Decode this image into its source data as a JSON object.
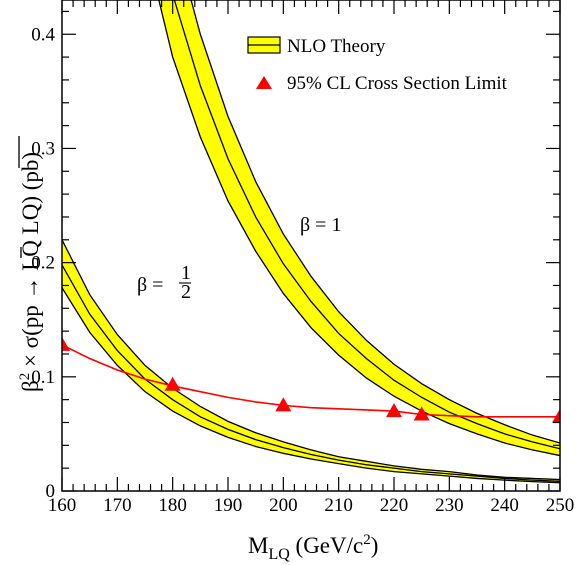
{
  "chart_data": {
    "type": "line",
    "title": "",
    "xlabel": {
      "main": "M",
      "sub": "LQ",
      "unit": " (GeV/c",
      "sup": "2",
      "close": ")"
    },
    "ylabel": {
      "beta": "β",
      "sq": "2",
      "times_sigma": " × σ(p",
      "pbar": "p",
      "arrow": " → LQ ",
      "lqbar": "LQ",
      "unit": ") (pb)"
    },
    "xlim": [
      160,
      250
    ],
    "ylim": [
      0,
      0.43
    ],
    "x_ticks": [
      160,
      170,
      180,
      190,
      200,
      210,
      220,
      230,
      240,
      250
    ],
    "x_tick_labels": [
      "160",
      "170",
      "180",
      "190",
      "200",
      "210",
      "220",
      "230",
      "240",
      "250"
    ],
    "y_ticks": [
      0,
      0.1,
      0.2,
      0.3,
      0.4
    ],
    "y_tick_labels": [
      "0",
      "0.1",
      "0.2",
      "0.3",
      "0.4"
    ],
    "legend": {
      "placement": "top-right",
      "entries": [
        {
          "label": "NLO Theory",
          "marker": "band",
          "color": "#ffff00"
        },
        {
          "label": "95% CL Cross Section Limit",
          "marker": "triangle",
          "color": "#ff0000"
        }
      ]
    },
    "theory_bands": [
      {
        "annotation": "β = 1",
        "x": [
          160,
          165,
          170,
          175,
          180,
          185,
          190,
          195,
          200,
          205,
          210,
          215,
          220,
          225,
          230,
          235,
          240,
          245,
          250
        ],
        "upper": [
          1.2,
          0.95,
          0.76,
          0.61,
          0.49,
          0.4,
          0.328,
          0.271,
          0.225,
          0.188,
          0.157,
          0.132,
          0.111,
          0.094,
          0.08,
          0.068,
          0.058,
          0.049,
          0.042
        ],
        "center": [
          1.08,
          0.86,
          0.685,
          0.545,
          0.435,
          0.355,
          0.291,
          0.24,
          0.199,
          0.166,
          0.138,
          0.116,
          0.097,
          0.082,
          0.069,
          0.059,
          0.05,
          0.043,
          0.037
        ],
        "lower": [
          0.96,
          0.77,
          0.61,
          0.48,
          0.38,
          0.31,
          0.254,
          0.21,
          0.173,
          0.143,
          0.119,
          0.099,
          0.083,
          0.07,
          0.059,
          0.05,
          0.042,
          0.036,
          0.031
        ]
      },
      {
        "annotation_prefix": "β = ",
        "annotation_num": "1",
        "annotation_den": "2",
        "x": [
          160,
          165,
          170,
          175,
          180,
          185,
          190,
          195,
          200,
          205,
          210,
          215,
          220,
          225,
          230,
          235,
          240,
          245,
          250
        ],
        "upper": [
          0.22,
          0.172,
          0.137,
          0.11,
          0.09,
          0.074,
          0.061,
          0.051,
          0.043,
          0.036,
          0.03,
          0.026,
          0.022,
          0.019,
          0.017,
          0.014,
          0.012,
          0.011,
          0.01
        ],
        "center": [
          0.198,
          0.155,
          0.123,
          0.098,
          0.08,
          0.065,
          0.054,
          0.045,
          0.038,
          0.032,
          0.027,
          0.023,
          0.02,
          0.017,
          0.015,
          0.013,
          0.011,
          0.0095,
          0.0085
        ],
        "lower": [
          0.178,
          0.139,
          0.11,
          0.087,
          0.07,
          0.057,
          0.047,
          0.039,
          0.033,
          0.028,
          0.024,
          0.02,
          0.017,
          0.015,
          0.013,
          0.011,
          0.0095,
          0.0082,
          0.0072
        ]
      }
    ],
    "limit": {
      "points": {
        "x": [
          160,
          180,
          200,
          220,
          225,
          250
        ],
        "y": [
          0.128,
          0.093,
          0.075,
          0.07,
          0.067,
          0.065
        ]
      },
      "curve": {
        "x": [
          160,
          165,
          170,
          175,
          180,
          185,
          190,
          195,
          200,
          205,
          210,
          215,
          220,
          225,
          230,
          235,
          240,
          245,
          250
        ],
        "y": [
          0.128,
          0.116,
          0.106,
          0.098,
          0.092,
          0.087,
          0.082,
          0.078,
          0.075,
          0.073,
          0.072,
          0.071,
          0.07,
          0.067,
          0.066,
          0.065,
          0.065,
          0.065,
          0.065
        ]
      },
      "color": "#ff0000"
    },
    "grid": false
  }
}
